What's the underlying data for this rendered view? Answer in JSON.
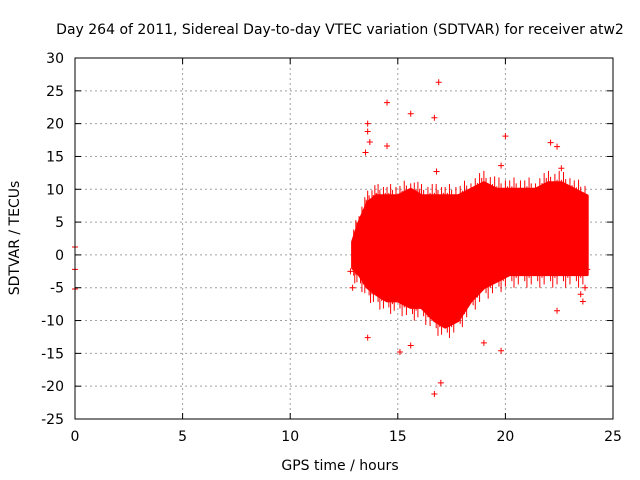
{
  "chart_data": {
    "type": "scatter",
    "title": "Day 264 of 2011, Sidereal Day-to-day VTEC variation (SDTVAR) for receiver atw2",
    "xlabel": "GPS time / hours",
    "ylabel": "SDTVAR / TECUs",
    "xlim": [
      0,
      25
    ],
    "ylim": [
      -25,
      30
    ],
    "xticks": [
      0,
      5,
      10,
      15,
      20,
      25
    ],
    "yticks": [
      -25,
      -20,
      -15,
      -10,
      -5,
      0,
      5,
      10,
      15,
      20,
      25,
      30
    ],
    "grid": true,
    "marker": "+",
    "series": [
      {
        "name": "SDTVAR",
        "color": "#ff0000",
        "dense_band": {
          "x": [
            12.9,
            13.2,
            13.6,
            14.0,
            14.5,
            15.0,
            15.6,
            16.1,
            16.7,
            17.2,
            17.8,
            18.4,
            19.0,
            19.6,
            20.2,
            20.8,
            21.4,
            22.0,
            22.6,
            23.2,
            23.8
          ],
          "upper": [
            2,
            5,
            8,
            9,
            9,
            9,
            10,
            9,
            9,
            9,
            9,
            10,
            11,
            10,
            10,
            10,
            10,
            11,
            11,
            10,
            9
          ],
          "lower": [
            -2,
            -3,
            -5,
            -6,
            -7,
            -7,
            -8,
            -8,
            -10,
            -11,
            -10,
            -7,
            -5,
            -4,
            -3,
            -3,
            -3,
            -3,
            -3,
            -3,
            -3
          ]
        },
        "points": [
          {
            "x": 0.0,
            "y": 1.2
          },
          {
            "x": 0.0,
            "y": -2.2
          },
          {
            "x": 0.0,
            "y": -5.2
          },
          {
            "x": 12.8,
            "y": -2.5
          },
          {
            "x": 12.9,
            "y": -5.0
          },
          {
            "x": 13.6,
            "y": 20.0
          },
          {
            "x": 13.6,
            "y": 18.8
          },
          {
            "x": 13.7,
            "y": 17.2
          },
          {
            "x": 13.5,
            "y": 15.6
          },
          {
            "x": 13.6,
            "y": -12.6
          },
          {
            "x": 14.5,
            "y": 23.2
          },
          {
            "x": 14.5,
            "y": 16.6
          },
          {
            "x": 15.1,
            "y": -14.8
          },
          {
            "x": 15.6,
            "y": 21.5
          },
          {
            "x": 15.6,
            "y": -13.8
          },
          {
            "x": 16.7,
            "y": 20.9
          },
          {
            "x": 16.8,
            "y": 12.7
          },
          {
            "x": 16.9,
            "y": 26.3
          },
          {
            "x": 16.7,
            "y": -21.2
          },
          {
            "x": 17.0,
            "y": -19.5
          },
          {
            "x": 19.0,
            "y": -13.4
          },
          {
            "x": 19.8,
            "y": 13.6
          },
          {
            "x": 20.0,
            "y": 18.1
          },
          {
            "x": 19.8,
            "y": -14.6
          },
          {
            "x": 22.1,
            "y": 17.1
          },
          {
            "x": 22.4,
            "y": 16.5
          },
          {
            "x": 22.6,
            "y": 13.2
          },
          {
            "x": 22.4,
            "y": -8.5
          },
          {
            "x": 23.5,
            "y": -6.0
          },
          {
            "x": 23.6,
            "y": -7.1
          },
          {
            "x": 23.7,
            "y": 4.0
          },
          {
            "x": 23.8,
            "y": -2.2
          },
          {
            "x": 23.7,
            "y": -5.0
          }
        ]
      }
    ]
  }
}
